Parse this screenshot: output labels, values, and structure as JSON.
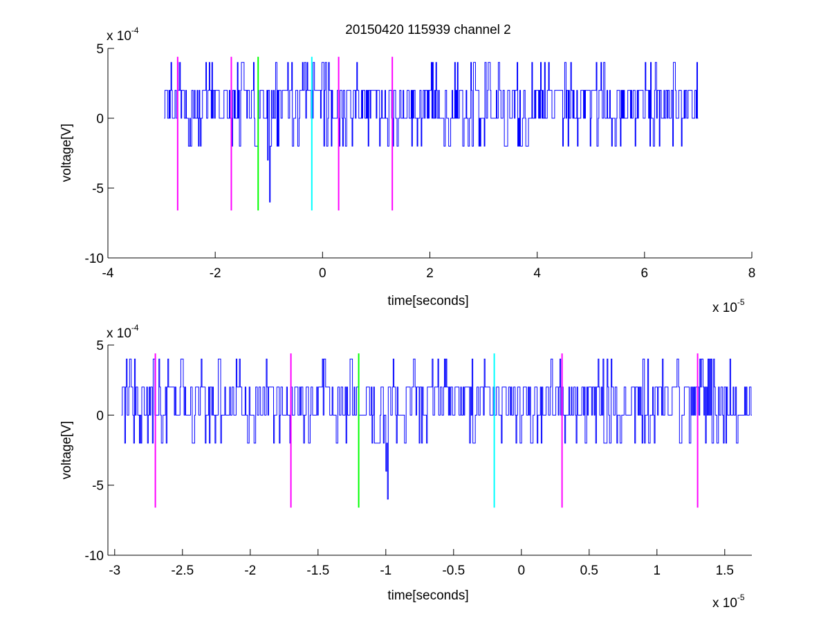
{
  "figure": {
    "title": "20150420 115939 channel 2"
  },
  "chart_data": [
    {
      "type": "line",
      "xlabel": "time[seconds]",
      "ylabel": "voltage[V]",
      "x_exponent_label": "x 10",
      "x_exponent": "-5",
      "y_exponent_label": "x 10",
      "y_exponent": "-4",
      "xlim": [
        -4,
        8
      ],
      "ylim": [
        -10,
        5
      ],
      "xticks": [
        "-4",
        "-2",
        "0",
        "2",
        "4",
        "6",
        "8"
      ],
      "yticks": [
        "-10",
        "-5",
        "0",
        "5"
      ],
      "xtick_values": [
        -4,
        -2,
        0,
        2,
        4,
        6,
        8
      ],
      "ytick_values": [
        -10,
        -5,
        0,
        5
      ],
      "series": [
        {
          "color": "#0000ff",
          "x_range": [
            -2.95,
            7.0
          ],
          "levels": [
            -2,
            0,
            2,
            4
          ],
          "extremes": [
            [
              -0.99,
              -6.0
            ],
            [
              -1.02,
              -3.0
            ]
          ]
        }
      ],
      "markers": [
        {
          "x": -2.7,
          "color": "#ff00ff",
          "y_bottom": -6.6,
          "y_top": 4.4
        },
        {
          "x": -1.7,
          "color": "#ff00ff",
          "y_bottom": -6.6,
          "y_top": 4.4
        },
        {
          "x": -1.2,
          "color": "#00ff00",
          "y_bottom": -6.6,
          "y_top": 4.4
        },
        {
          "x": -0.2,
          "color": "#00ffff",
          "y_bottom": -6.6,
          "y_top": 4.4
        },
        {
          "x": 0.3,
          "color": "#ff00ff",
          "y_bottom": -6.6,
          "y_top": 4.4
        },
        {
          "x": 1.3,
          "color": "#ff00ff",
          "y_bottom": -6.6,
          "y_top": 4.4
        }
      ],
      "grid": false
    },
    {
      "type": "line",
      "xlabel": "time[seconds]",
      "ylabel": "voltage[V]",
      "x_exponent_label": "x 10",
      "x_exponent": "-5",
      "y_exponent_label": "x 10",
      "y_exponent": "-4",
      "xlim": [
        -3.05,
        1.7
      ],
      "ylim": [
        -10,
        5
      ],
      "xticks": [
        "-3",
        "-2.5",
        "-2",
        "-1.5",
        "-1",
        "-0.5",
        "0",
        "0.5",
        "1",
        "1.5"
      ],
      "yticks": [
        "-10",
        "-5",
        "0",
        "5"
      ],
      "xtick_values": [
        -3,
        -2.5,
        -2,
        -1.5,
        -1,
        -0.5,
        0,
        0.5,
        1,
        1.5
      ],
      "ytick_values": [
        -10,
        -5,
        0,
        5
      ],
      "series": [
        {
          "color": "#0000ff",
          "x_range": [
            -2.95,
            1.7
          ],
          "levels": [
            -2,
            0,
            2,
            4
          ],
          "extremes": [
            [
              -0.99,
              -6.0
            ],
            [
              -1.0,
              -4.0
            ]
          ]
        }
      ],
      "markers": [
        {
          "x": -2.7,
          "color": "#ff00ff",
          "y_bottom": -6.6,
          "y_top": 4.4
        },
        {
          "x": -1.7,
          "color": "#ff00ff",
          "y_bottom": -6.6,
          "y_top": 4.4
        },
        {
          "x": -1.2,
          "color": "#00ff00",
          "y_bottom": -6.6,
          "y_top": 4.4
        },
        {
          "x": -0.2,
          "color": "#00ffff",
          "y_bottom": -6.6,
          "y_top": 4.4
        },
        {
          "x": 0.3,
          "color": "#ff00ff",
          "y_bottom": -6.6,
          "y_top": 4.4
        },
        {
          "x": 1.3,
          "color": "#ff00ff",
          "y_bottom": -6.6,
          "y_top": 4.4
        }
      ],
      "grid": false
    }
  ]
}
